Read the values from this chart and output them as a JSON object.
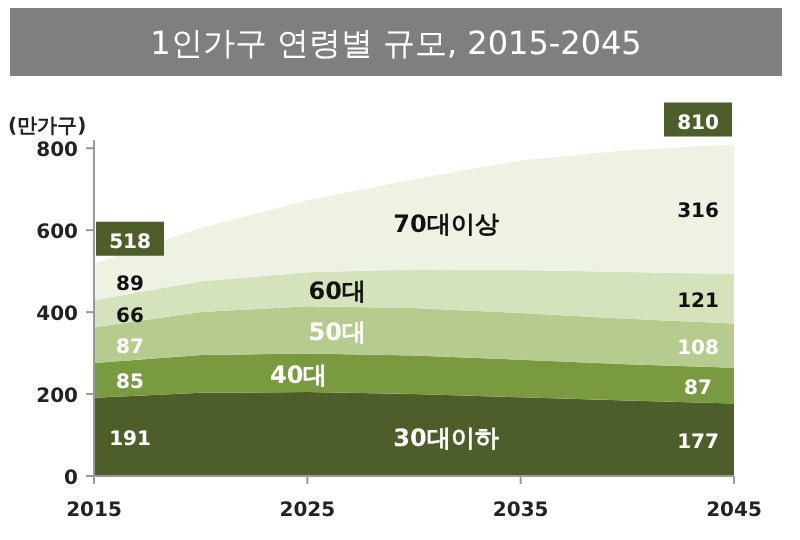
{
  "chart_data": {
    "type": "area",
    "stacked": true,
    "title": "1인가구 연령별 규모, 2015-2045",
    "ylabel": "(만가구)",
    "x": [
      2015,
      2020,
      2025,
      2030,
      2035,
      2040,
      2045
    ],
    "xlim": [
      2015,
      2045
    ],
    "xticks": [
      2015,
      2025,
      2035,
      2045
    ],
    "ylim": [
      0,
      820
    ],
    "yticks": [
      0,
      200,
      400,
      600,
      800
    ],
    "grid": false,
    "legend": false,
    "series": [
      {
        "name": "30대이하",
        "color": "#4e5e2a",
        "values": [
          191,
          203,
          205,
          200,
          192,
          184,
          177
        ],
        "value_labels": [
          "191",
          null,
          null,
          null,
          null,
          null,
          "177"
        ]
      },
      {
        "name": "40대",
        "color": "#7a9a40",
        "values": [
          85,
          92,
          94,
          94,
          92,
          89,
          87
        ],
        "value_labels": [
          "85",
          null,
          null,
          null,
          null,
          null,
          "87"
        ]
      },
      {
        "name": "50대",
        "color": "#b5cc8e",
        "values": [
          87,
          105,
          115,
          116,
          114,
          111,
          108
        ],
        "value_labels": [
          "87",
          null,
          null,
          null,
          null,
          null,
          "108"
        ]
      },
      {
        "name": "60대",
        "color": "#d5e3bc",
        "values": [
          66,
          75,
          83,
          94,
          105,
          114,
          121
        ],
        "value_labels": [
          "66",
          null,
          null,
          null,
          null,
          null,
          "121"
        ]
      },
      {
        "name": "70대이상",
        "color": "#edf2e2",
        "values": [
          89,
          130,
          176,
          220,
          267,
          297,
          316
        ],
        "value_labels": [
          "89",
          null,
          null,
          null,
          null,
          null,
          "316"
        ]
      }
    ],
    "totals": [
      "518",
      null,
      null,
      null,
      null,
      null,
      "810"
    ]
  }
}
